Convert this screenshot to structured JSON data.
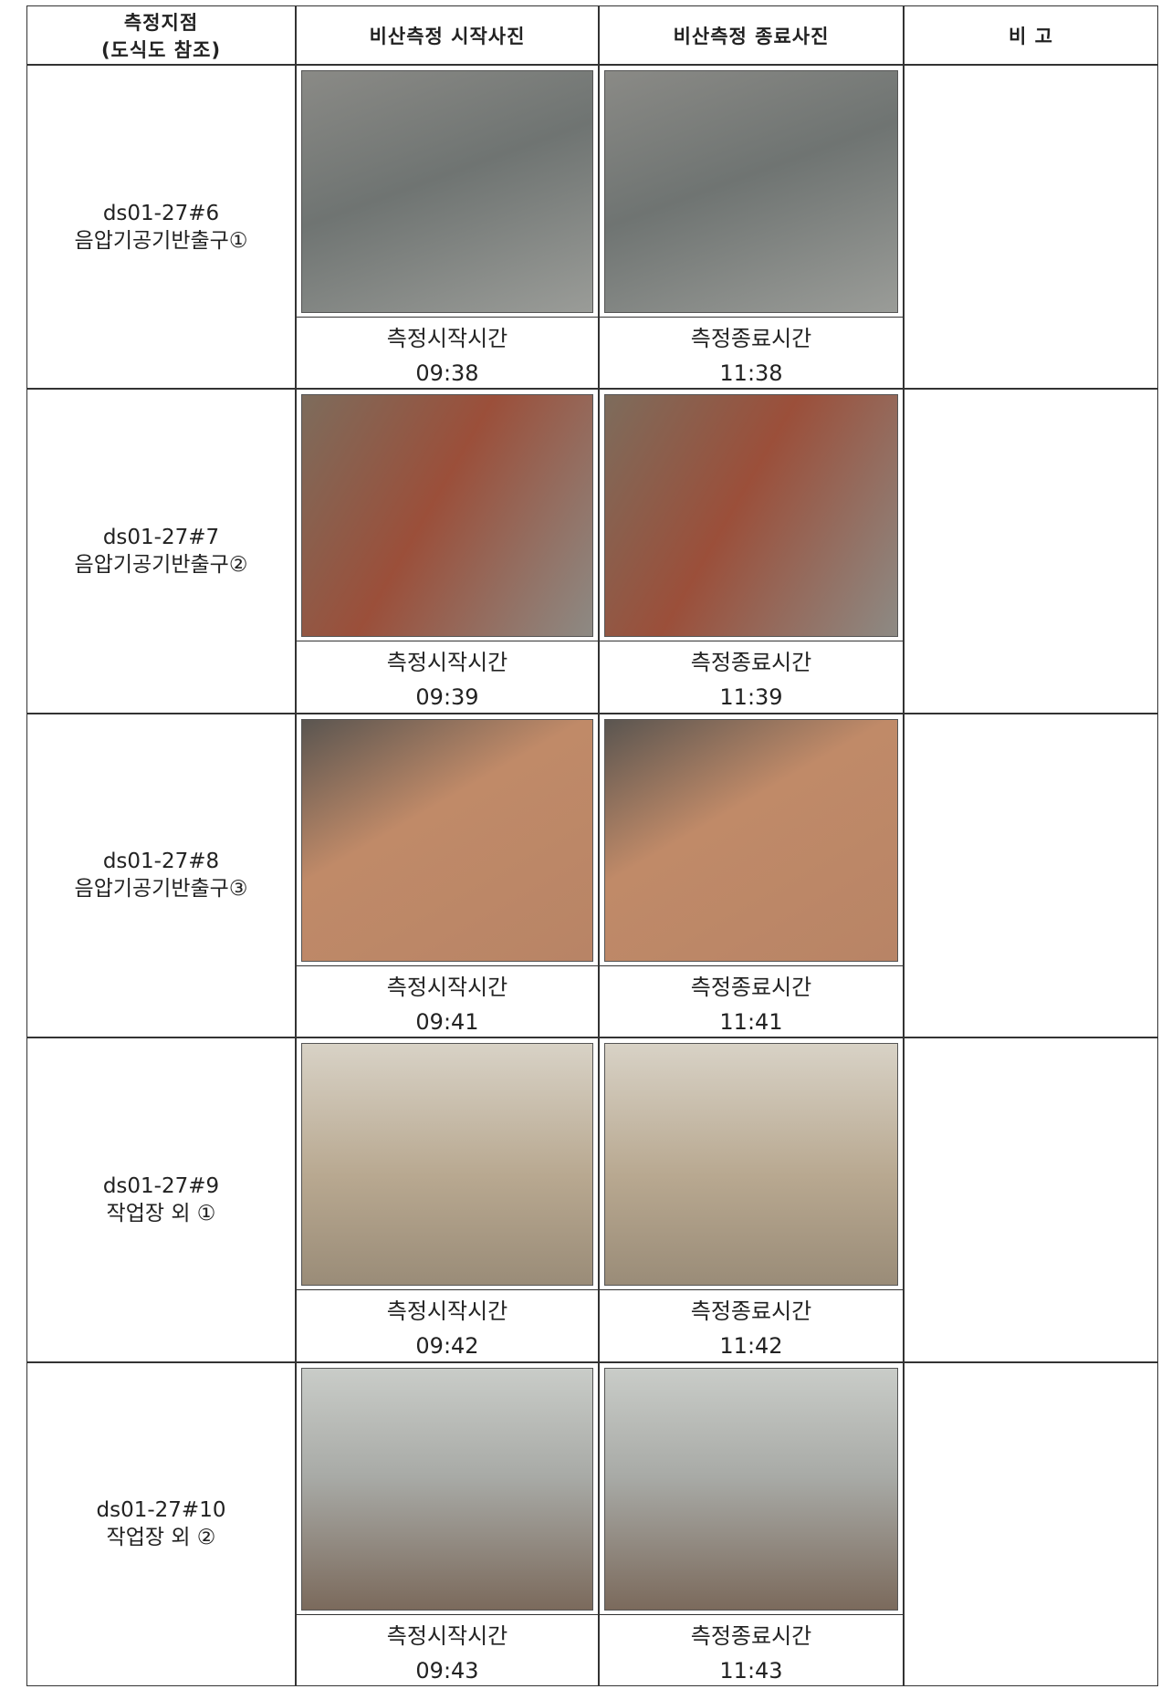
{
  "table": {
    "headers": [
      [
        "측정지점",
        "(도식도 참조)"
      ],
      "비산측정 시작사진",
      "비산측정 종료사진",
      "비 고"
    ],
    "rows": [
      {
        "location": [
          "ds01-27#6",
          "음압기공기반출구①"
        ],
        "start": {
          "label": "측정시작시간",
          "time": "09:38"
        },
        "end": {
          "label": "측정종료시간",
          "time": "11:38"
        }
      },
      {
        "location": [
          "ds01-27#7",
          "음압기공기반출구②"
        ],
        "start": {
          "label": "측정시작시간",
          "time": "09:39"
        },
        "end": {
          "label": "측정종료시간",
          "time": "11:39"
        }
      },
      {
        "location": [
          "ds01-27#8",
          "음압기공기반출구③"
        ],
        "start": {
          "label": "측정시작시간",
          "time": "09:41"
        },
        "end": {
          "label": "측정종료시간",
          "time": "11:41"
        }
      },
      {
        "location": [
          "ds01-27#9",
          "작업장 외 ①"
        ],
        "start": {
          "label": "측정시작시간",
          "time": "09:42"
        },
        "end": {
          "label": "측정종료시간",
          "time": "11:42"
        }
      },
      {
        "location": [
          "ds01-27#10",
          "작업장 외 ②"
        ],
        "start": {
          "label": "측정시작시간",
          "time": "09:43"
        },
        "end": {
          "label": "측정종료시간",
          "time": "11:43"
        }
      }
    ]
  }
}
